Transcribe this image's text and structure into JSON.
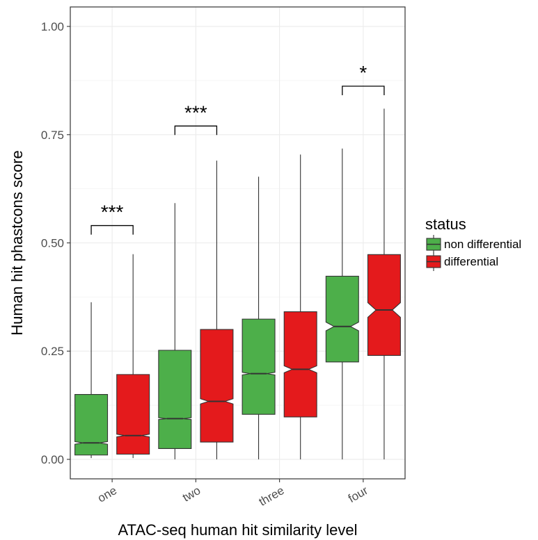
{
  "chart_data": {
    "type": "boxplot",
    "xlabel": "ATAC-seq human hit similarity level",
    "ylabel": "Human hit phastcons score",
    "ylim": [
      -0.045,
      1.045
    ],
    "y_ticks": [
      "0.00",
      "0.25",
      "0.50",
      "0.75",
      "1.00"
    ],
    "y_tick_values": [
      0,
      0.25,
      0.5,
      0.75,
      1.0
    ],
    "categories": [
      "one",
      "two",
      "three",
      "four"
    ],
    "notched": true,
    "grid": true,
    "legend": {
      "title": "status",
      "placement": "right",
      "entries": [
        "non differential",
        "differential"
      ]
    },
    "series": [
      {
        "name": "non differential",
        "color": "#4daf4a",
        "boxes": [
          {
            "min": 0.003,
            "q1": 0.01,
            "median": 0.038,
            "q3": 0.15,
            "max": 0.363,
            "notch_low": 0.035,
            "notch_high": 0.041
          },
          {
            "min": 0.0,
            "q1": 0.025,
            "median": 0.094,
            "q3": 0.252,
            "max": 0.592,
            "notch_low": 0.092,
            "notch_high": 0.096
          },
          {
            "min": 0.0,
            "q1": 0.104,
            "median": 0.198,
            "q3": 0.324,
            "max": 0.653,
            "notch_low": 0.195,
            "notch_high": 0.201
          },
          {
            "min": 0.0,
            "q1": 0.225,
            "median": 0.307,
            "q3": 0.423,
            "max": 0.718,
            "notch_low": 0.297,
            "notch_high": 0.317
          }
        ]
      },
      {
        "name": "differential",
        "color": "#e41a1c",
        "boxes": [
          {
            "min": 0.003,
            "q1": 0.012,
            "median": 0.055,
            "q3": 0.196,
            "max": 0.474,
            "notch_low": 0.052,
            "notch_high": 0.058
          },
          {
            "min": 0.0,
            "q1": 0.04,
            "median": 0.134,
            "q3": 0.3,
            "max": 0.69,
            "notch_low": 0.128,
            "notch_high": 0.14
          },
          {
            "min": 0.0,
            "q1": 0.098,
            "median": 0.208,
            "q3": 0.341,
            "max": 0.704,
            "notch_low": 0.2,
            "notch_high": 0.216
          },
          {
            "min": 0.0,
            "q1": 0.24,
            "median": 0.345,
            "q3": 0.473,
            "max": 0.81,
            "notch_low": 0.328,
            "notch_high": 0.362
          }
        ]
      }
    ],
    "annotations": [
      {
        "category_index": 0,
        "label": "***",
        "bracket_y": 0.54
      },
      {
        "category_index": 1,
        "label": "***",
        "bracket_y": 0.77
      },
      {
        "category_index": 3,
        "label": "*",
        "bracket_y": 0.862
      }
    ]
  }
}
